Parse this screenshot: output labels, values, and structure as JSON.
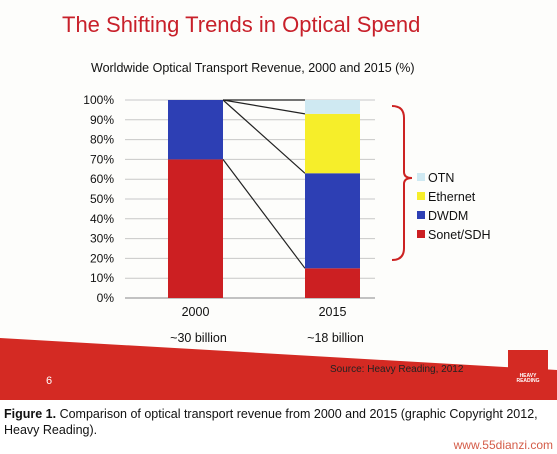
{
  "slide": {
    "title": "The Shifting Trends in Optical Spend",
    "page_number": "6",
    "source": "Source: Heavy Reading, 2012",
    "logo_text": "HEAVY READING"
  },
  "caption": {
    "label": "Figure 1.",
    "text": "Comparison of optical transport revenue from 2000 and 2015 (graphic Copyright 2012, Heavy Reading)."
  },
  "watermark": "www.55dianzi.com",
  "colors": {
    "title": "#c8202a",
    "sonet": "#cc1f22",
    "dwdm": "#2d3fb4",
    "ethernet": "#f6ee2a",
    "otn": "#cfe9f2",
    "bracket": "#cc2222",
    "band": "#d42a23"
  },
  "chart_data": {
    "type": "bar",
    "stacked": true,
    "title": "Worldwide Optical Transport Revenue, 2000 and 2015 (%)",
    "categories": [
      "2000",
      "2015"
    ],
    "category_sublabels": [
      "~30 billion",
      "~18 billion"
    ],
    "y_tick_labels": [
      "0%",
      "10%",
      "20%",
      "30%",
      "40%",
      "50%",
      "60%",
      "70%",
      "80%",
      "90%",
      "100%"
    ],
    "ylim": [
      0,
      100
    ],
    "series": [
      {
        "name": "Sonet/SDH",
        "values": [
          70,
          15
        ]
      },
      {
        "name": "DWDM",
        "values": [
          30,
          48
        ]
      },
      {
        "name": "Ethernet",
        "values": [
          0,
          30
        ]
      },
      {
        "name": "OTN",
        "values": [
          0,
          7
        ]
      }
    ],
    "legend_order": [
      "OTN",
      "Ethernet",
      "DWDM",
      "Sonet/SDH"
    ],
    "legend_position": "right"
  }
}
